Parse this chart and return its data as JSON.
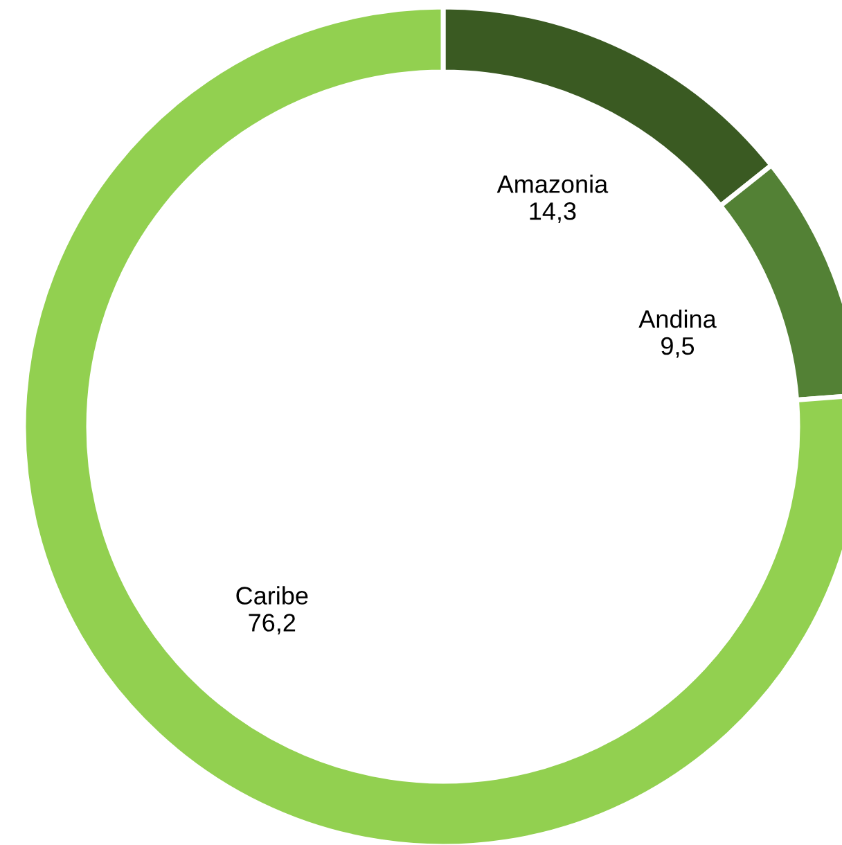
{
  "chart_data": {
    "type": "donut",
    "categories": [
      "Amazonia",
      "Andina",
      "Caribe"
    ],
    "values": [
      14.3,
      9.5,
      76.2
    ],
    "value_labels": [
      "14,3",
      "9,5",
      "76,2"
    ],
    "colors": [
      "#3a5a22",
      "#538135",
      "#92d050"
    ]
  }
}
